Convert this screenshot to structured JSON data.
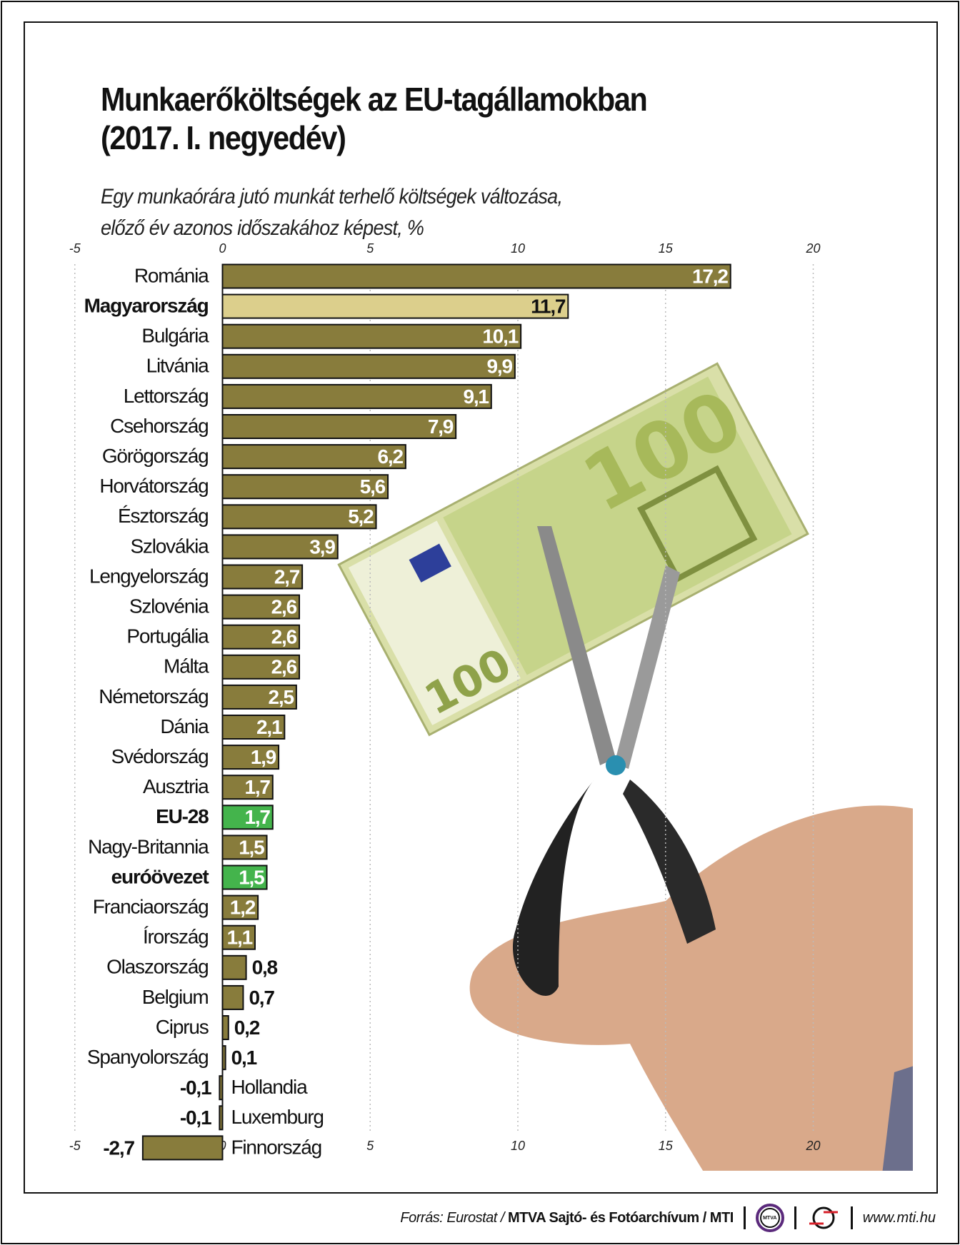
{
  "title_line1": "Munkaerőköltségek az EU-tagállamokban",
  "title_line2": "(2017. I. negyedév)",
  "subtitle_line1": "Egy munkaórára jutó munkát terhelő költségek változása,",
  "subtitle_line2": "előző év azonos időszakához képest, %",
  "colors": {
    "bar": "#887c3c",
    "highlight_hungary": "#dccf8c",
    "highlight_eu": "#44b44c",
    "text": "#111111"
  },
  "chart_data": {
    "type": "bar",
    "orientation": "horizontal",
    "title": "Munkaerőköltségek az EU-tagállamokban (2017. I. negyedév)",
    "subtitle": "Egy munkaórára jutó munkát terhelő költségek változása, előző év azonos időszakához képest, %",
    "xlim": [
      -5,
      20
    ],
    "ticks": [
      "-5",
      "0",
      "5",
      "10",
      "15",
      "20"
    ],
    "tick_values": [
      -5,
      0,
      5,
      10,
      15,
      20
    ],
    "grid": true,
    "categories": [
      "Románia",
      "Magyarország",
      "Bulgária",
      "Litvánia",
      "Lettország",
      "Csehország",
      "Görögország",
      "Horvátország",
      "Észtország",
      "Szlovákia",
      "Lengyelország",
      "Szlovénia",
      "Portugália",
      "Málta",
      "Németország",
      "Dánia",
      "Svédország",
      "Ausztria",
      "EU-28",
      "Nagy-Britannia",
      "euróövezet",
      "Franciaország",
      "Írország",
      "Olaszország",
      "Belgium",
      "Ciprus",
      "Spanyolország",
      "Hollandia",
      "Luxemburg",
      "Finnország"
    ],
    "values": [
      17.2,
      11.7,
      10.1,
      9.9,
      9.1,
      7.9,
      6.2,
      5.6,
      5.2,
      3.9,
      2.7,
      2.6,
      2.6,
      2.6,
      2.5,
      2.1,
      1.9,
      1.7,
      1.7,
      1.5,
      1.5,
      1.2,
      1.1,
      0.8,
      0.7,
      0.2,
      0.1,
      -0.1,
      -0.1,
      -2.7
    ],
    "value_labels": [
      "17,2",
      "11,7",
      "10,1",
      "9,9",
      "9,1",
      "7,9",
      "6,2",
      "5,6",
      "5,2",
      "3,9",
      "2,7",
      "2,6",
      "2,6",
      "2,6",
      "2,5",
      "2,1",
      "1,9",
      "1,7",
      "1,7",
      "1,5",
      "1,5",
      "1,2",
      "1,1",
      "0,8",
      "0,7",
      "0,2",
      "0,1",
      "-0,1",
      "-0,1",
      "-2,7"
    ],
    "highlight": {
      "Magyarország": "hungary",
      "EU-28": "eu",
      "euróövezet": "eu"
    }
  },
  "footer": {
    "source_prefix": "Forrás: Eurostat / ",
    "source_bold": "MTVA Sajtó- és Fotóarchívum",
    "source_suffix": " / MTI",
    "logo_mtva": "MTVA",
    "url": "www.mti.hu"
  }
}
